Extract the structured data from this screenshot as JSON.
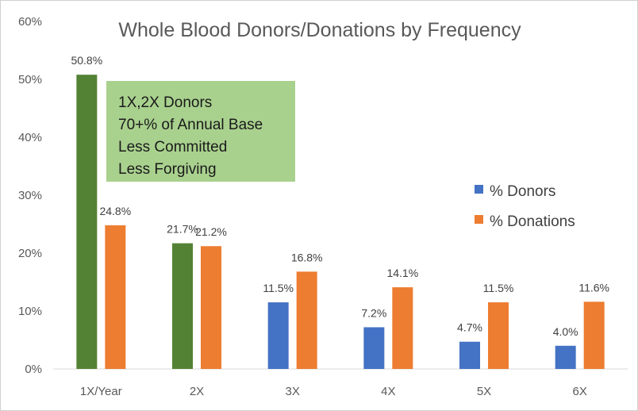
{
  "chart_data": {
    "type": "bar",
    "title": "Whole Blood Donors/Donations by Frequency",
    "categories": [
      "1X/Year",
      "2X",
      "3X",
      "4X",
      "5X",
      "6X"
    ],
    "ylim": [
      0,
      60
    ],
    "yticks": [
      0,
      10,
      20,
      30,
      40,
      50,
      60
    ],
    "ytick_labels": [
      "0%",
      "10%",
      "20%",
      "30%",
      "40%",
      "50%",
      "60%"
    ],
    "grid": false,
    "legend_position": "right",
    "series": [
      {
        "name": "% Donors",
        "color": "#4472C4",
        "highlight_color": "#548235",
        "highlight_categories": [
          "1X/Year",
          "2X"
        ],
        "values": [
          50.8,
          21.7,
          11.5,
          7.2,
          4.7,
          4.0
        ],
        "labels": [
          "50.8%",
          "21.7%",
          "11.5%",
          "7.2%",
          "4.7%",
          "4.0%"
        ]
      },
      {
        "name": "% Donations",
        "color": "#ED7D31",
        "values": [
          24.8,
          21.2,
          16.8,
          14.1,
          11.5,
          11.6
        ],
        "labels": [
          "24.8%",
          "21.2%",
          "16.8%",
          "14.1%",
          "11.5%",
          "11.6%"
        ]
      }
    ],
    "annotation": {
      "lines": [
        "1X,2X Donors",
        "70+% of Annual Base",
        "Less Committed",
        "Less Forgiving"
      ],
      "background": "#A9D18E"
    }
  }
}
